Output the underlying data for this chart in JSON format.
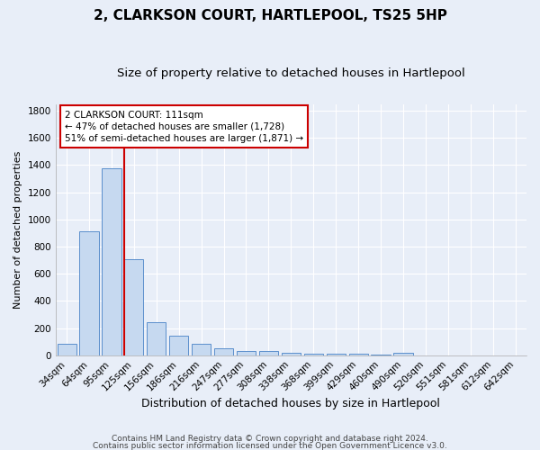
{
  "title": "2, CLARKSON COURT, HARTLEPOOL, TS25 5HP",
  "subtitle": "Size of property relative to detached houses in Hartlepool",
  "xlabel": "Distribution of detached houses by size in Hartlepool",
  "ylabel": "Number of detached properties",
  "categories": [
    "34sqm",
    "64sqm",
    "95sqm",
    "125sqm",
    "156sqm",
    "186sqm",
    "216sqm",
    "247sqm",
    "277sqm",
    "308sqm",
    "338sqm",
    "368sqm",
    "399sqm",
    "429sqm",
    "460sqm",
    "490sqm",
    "520sqm",
    "551sqm",
    "581sqm",
    "612sqm",
    "642sqm"
  ],
  "values": [
    85,
    910,
    1375,
    710,
    245,
    145,
    85,
    50,
    30,
    30,
    20,
    12,
    12,
    10,
    8,
    20,
    0,
    0,
    0,
    0,
    0
  ],
  "bar_color": "#c6d9f0",
  "bar_edge_color": "#5b8fcc",
  "red_line_x": 2.55,
  "annotation_text": "2 CLARKSON COURT: 111sqm\n← 47% of detached houses are smaller (1,728)\n51% of semi-detached houses are larger (1,871) →",
  "annotation_box_color": "#ffffff",
  "annotation_box_edge_color": "#cc0000",
  "red_line_color": "#cc0000",
  "ylim": [
    0,
    1850
  ],
  "yticks": [
    0,
    200,
    400,
    600,
    800,
    1000,
    1200,
    1400,
    1600,
    1800
  ],
  "background_color": "#e8eef8",
  "grid_color": "#ffffff",
  "footer1": "Contains HM Land Registry data © Crown copyright and database right 2024.",
  "footer2": "Contains public sector information licensed under the Open Government Licence v3.0.",
  "title_fontsize": 11,
  "subtitle_fontsize": 9.5,
  "xlabel_fontsize": 9,
  "ylabel_fontsize": 8,
  "tick_fontsize": 7.5,
  "annotation_fontsize": 7.5,
  "footer_fontsize": 6.5
}
